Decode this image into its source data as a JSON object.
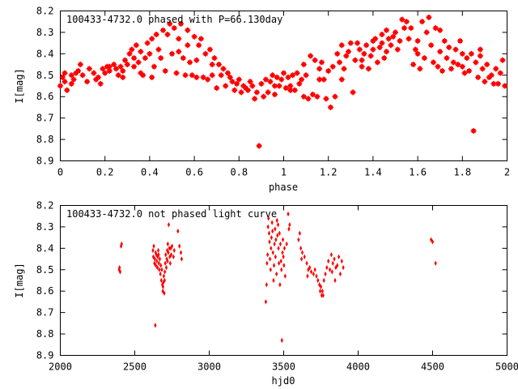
{
  "chart_data": [
    {
      "type": "scatter",
      "title": "100433-4732.0 phased with P=66.130day",
      "xlabel": "phase",
      "ylabel": "I[mag]",
      "xlim": [
        0,
        2
      ],
      "ylim": [
        8.2,
        8.9
      ],
      "y_inverted": true,
      "x_ticks": [
        "0",
        "0.2",
        "0.4",
        "0.6",
        "0.8",
        "1",
        "1.2",
        "1.4",
        "1.6",
        "1.8",
        "2"
      ],
      "y_ticks": [
        "8.2",
        "8.3",
        "8.4",
        "8.5",
        "8.6",
        "8.7",
        "8.8",
        "8.9"
      ],
      "grid": false,
      "legend": "none",
      "marker_color": "#ff0000",
      "points": [
        [
          0.0,
          8.55
        ],
        [
          0.01,
          8.51
        ],
        [
          0.02,
          8.53
        ],
        [
          0.02,
          8.49
        ],
        [
          0.03,
          8.57
        ],
        [
          0.05,
          8.5
        ],
        [
          0.06,
          8.52
        ],
        [
          0.08,
          8.48
        ],
        [
          0.09,
          8.45
        ],
        [
          0.1,
          8.5
        ],
        [
          0.12,
          8.53
        ],
        [
          0.13,
          8.47
        ],
        [
          0.15,
          8.49
        ],
        [
          0.16,
          8.52
        ],
        [
          0.17,
          8.51
        ],
        [
          0.19,
          8.47
        ],
        [
          0.2,
          8.49
        ],
        [
          0.21,
          8.46
        ],
        [
          0.22,
          8.48
        ],
        [
          0.24,
          8.45
        ],
        [
          0.25,
          8.47
        ],
        [
          0.26,
          8.5
        ],
        [
          0.27,
          8.46
        ],
        [
          0.28,
          8.48
        ],
        [
          0.29,
          8.43
        ],
        [
          0.3,
          8.45
        ],
        [
          0.31,
          8.4
        ],
        [
          0.32,
          8.38
        ],
        [
          0.33,
          8.42
        ],
        [
          0.34,
          8.36
        ],
        [
          0.35,
          8.44
        ],
        [
          0.36,
          8.49
        ],
        [
          0.37,
          8.5
        ],
        [
          0.38,
          8.42
        ],
        [
          0.39,
          8.35
        ],
        [
          0.4,
          8.4
        ],
        [
          0.41,
          8.33
        ],
        [
          0.42,
          8.46
        ],
        [
          0.43,
          8.31
        ],
        [
          0.44,
          8.38
        ],
        [
          0.45,
          8.42
        ],
        [
          0.46,
          8.29
        ],
        [
          0.47,
          8.48
        ],
        [
          0.48,
          8.31
        ],
        [
          0.49,
          8.26
        ],
        [
          0.5,
          8.4
        ],
        [
          0.51,
          8.28
        ],
        [
          0.52,
          8.49
        ],
        [
          0.53,
          8.33
        ],
        [
          0.54,
          8.26
        ],
        [
          0.55,
          8.42
        ],
        [
          0.56,
          8.5
        ],
        [
          0.57,
          8.29
        ],
        [
          0.58,
          8.44
        ],
        [
          0.59,
          8.5
        ],
        [
          0.6,
          8.32
        ],
        [
          0.61,
          8.51
        ],
        [
          0.62,
          8.36
        ],
        [
          0.63,
          8.33
        ],
        [
          0.64,
          8.51
        ],
        [
          0.65,
          8.4
        ],
        [
          0.66,
          8.52
        ],
        [
          0.67,
          8.38
        ],
        [
          0.68,
          8.5
        ],
        [
          0.69,
          8.42
        ],
        [
          0.7,
          8.56
        ],
        [
          0.71,
          8.45
        ],
        [
          0.72,
          8.5
        ],
        [
          0.73,
          8.47
        ],
        [
          0.74,
          8.55
        ],
        [
          0.75,
          8.49
        ],
        [
          0.76,
          8.51
        ],
        [
          0.77,
          8.53
        ],
        [
          0.78,
          8.57
        ],
        [
          0.79,
          8.54
        ],
        [
          0.8,
          8.52
        ],
        [
          0.81,
          8.58
        ],
        [
          0.82,
          8.55
        ],
        [
          0.83,
          8.56
        ],
        [
          0.84,
          8.57
        ],
        [
          0.85,
          8.53
        ],
        [
          0.86,
          8.55
        ],
        [
          0.87,
          8.61
        ],
        [
          0.88,
          8.58
        ],
        [
          0.89,
          8.83
        ],
        [
          0.9,
          8.54
        ],
        [
          0.91,
          8.6
        ],
        [
          0.92,
          8.52
        ],
        [
          0.93,
          8.58
        ],
        [
          0.94,
          8.53
        ],
        [
          0.95,
          8.5
        ],
        [
          0.96,
          8.55
        ],
        [
          0.97,
          8.51
        ],
        [
          0.98,
          8.55
        ],
        [
          0.99,
          8.52
        ],
        [
          1.0,
          8.49
        ],
        [
          1.01,
          8.56
        ],
        [
          1.02,
          8.51
        ],
        [
          1.03,
          8.55
        ],
        [
          1.04,
          8.5
        ],
        [
          1.05,
          8.57
        ],
        [
          1.06,
          8.49
        ],
        [
          1.07,
          8.54
        ],
        [
          1.08,
          8.52
        ],
        [
          1.09,
          8.6
        ],
        [
          1.1,
          8.5
        ],
        [
          1.11,
          8.61
        ],
        [
          1.12,
          8.41
        ],
        [
          1.13,
          8.59
        ],
        [
          1.14,
          8.43
        ],
        [
          1.15,
          8.6
        ],
        [
          1.16,
          8.47
        ],
        [
          1.17,
          8.44
        ],
        [
          1.18,
          8.52
        ],
        [
          1.19,
          8.61
        ],
        [
          1.2,
          8.48
        ],
        [
          1.21,
          8.65
        ],
        [
          1.22,
          8.46
        ],
        [
          1.23,
          8.6
        ],
        [
          1.24,
          8.4
        ],
        [
          1.25,
          8.44
        ],
        [
          1.26,
          8.36
        ],
        [
          1.27,
          8.47
        ],
        [
          1.28,
          8.41
        ],
        [
          1.29,
          8.39
        ],
        [
          1.3,
          8.35
        ],
        [
          1.31,
          8.58
        ],
        [
          1.32,
          8.43
        ],
        [
          1.33,
          8.35
        ],
        [
          1.34,
          8.38
        ],
        [
          1.35,
          8.43
        ],
        [
          1.36,
          8.4
        ],
        [
          1.37,
          8.36
        ],
        [
          1.38,
          8.47
        ],
        [
          1.39,
          8.41
        ],
        [
          1.4,
          8.38
        ],
        [
          1.41,
          8.33
        ],
        [
          1.42,
          8.44
        ],
        [
          1.43,
          8.37
        ],
        [
          1.44,
          8.35
        ],
        [
          1.45,
          8.42
        ],
        [
          1.46,
          8.39
        ],
        [
          1.47,
          8.33
        ],
        [
          1.48,
          8.36
        ],
        [
          1.49,
          8.32
        ],
        [
          1.5,
          8.3
        ],
        [
          1.51,
          8.38
        ],
        [
          1.52,
          8.34
        ],
        [
          1.53,
          8.24
        ],
        [
          1.54,
          8.28
        ],
        [
          1.55,
          8.25
        ],
        [
          1.56,
          8.33
        ],
        [
          1.57,
          8.28
        ],
        [
          1.58,
          8.45
        ],
        [
          1.59,
          8.38
        ],
        [
          1.6,
          8.4
        ],
        [
          1.61,
          8.47
        ],
        [
          1.62,
          8.25
        ],
        [
          1.63,
          8.42
        ],
        [
          1.64,
          8.3
        ],
        [
          1.65,
          8.23
        ],
        [
          1.66,
          8.36
        ],
        [
          1.67,
          8.44
        ],
        [
          1.68,
          8.28
        ],
        [
          1.69,
          8.46
        ],
        [
          1.7,
          8.29
        ],
        [
          1.71,
          8.48
        ],
        [
          1.72,
          8.34
        ],
        [
          1.73,
          8.42
        ],
        [
          1.74,
          8.37
        ],
        [
          1.75,
          8.47
        ],
        [
          1.76,
          8.44
        ],
        [
          1.77,
          8.38
        ],
        [
          1.78,
          8.45
        ],
        [
          1.79,
          8.34
        ],
        [
          1.8,
          8.46
        ],
        [
          1.81,
          8.49
        ],
        [
          1.82,
          8.42
        ],
        [
          1.83,
          8.48
        ],
        [
          1.84,
          8.4
        ],
        [
          1.85,
          8.76
        ],
        [
          1.86,
          8.44
        ],
        [
          1.87,
          8.51
        ],
        [
          1.88,
          8.41
        ],
        [
          1.89,
          8.47
        ],
        [
          1.9,
          8.53
        ],
        [
          1.91,
          8.45
        ],
        [
          1.92,
          8.51
        ],
        [
          1.93,
          8.5
        ],
        [
          1.94,
          8.54
        ],
        [
          1.95,
          8.47
        ],
        [
          1.96,
          8.54
        ],
        [
          1.97,
          8.49
        ],
        [
          1.98,
          8.43
        ],
        [
          1.99,
          8.55
        ],
        [
          1.46,
          8.29
        ],
        [
          1.44,
          8.31
        ],
        [
          1.4,
          8.34
        ],
        [
          1.35,
          8.46
        ],
        [
          1.26,
          8.52
        ],
        [
          0.18,
          8.54
        ],
        [
          0.22,
          8.46
        ],
        [
          0.28,
          8.51
        ],
        [
          0.33,
          8.46
        ],
        [
          0.36,
          8.39
        ],
        [
          0.41,
          8.51
        ],
        [
          0.53,
          8.39
        ],
        [
          0.57,
          8.36
        ],
        [
          0.61,
          8.43
        ],
        [
          0.68,
          8.45
        ],
        [
          1.09,
          8.45
        ],
        [
          1.16,
          8.52
        ],
        [
          1.6,
          8.34
        ],
        [
          1.7,
          8.39
        ],
        [
          1.8,
          8.4
        ],
        [
          1.88,
          8.38
        ],
        [
          0.05,
          8.54
        ],
        [
          0.07,
          8.49
        ],
        [
          0.96,
          8.59
        ],
        [
          1.03,
          8.57
        ]
      ]
    },
    {
      "type": "scatter",
      "title": "100433-4732.0 not phased light curve",
      "xlabel": "hjd0",
      "ylabel": "I[mag]",
      "xlim": [
        2000,
        5000
      ],
      "ylim": [
        8.2,
        8.9
      ],
      "y_inverted": true,
      "x_ticks": [
        "2000",
        "2500",
        "3000",
        "3500",
        "4000",
        "4500",
        "5000"
      ],
      "y_ticks": [
        "8.2",
        "8.3",
        "8.4",
        "8.5",
        "8.6",
        "8.7",
        "8.8",
        "8.9"
      ],
      "grid": false,
      "legend": "none",
      "marker_color": "#ff0000",
      "points": [
        [
          2395,
          8.5
        ],
        [
          2398,
          8.49
        ],
        [
          2402,
          8.51
        ],
        [
          2408,
          8.39
        ],
        [
          2412,
          8.38
        ],
        [
          2622,
          8.41
        ],
        [
          2625,
          8.44
        ],
        [
          2628,
          8.39
        ],
        [
          2632,
          8.47
        ],
        [
          2635,
          8.45
        ],
        [
          2638,
          8.76
        ],
        [
          2641,
          8.48
        ],
        [
          2645,
          8.43
        ],
        [
          2648,
          8.46
        ],
        [
          2652,
          8.49
        ],
        [
          2655,
          8.44
        ],
        [
          2658,
          8.41
        ],
        [
          2662,
          8.47
        ],
        [
          2665,
          8.5
        ],
        [
          2668,
          8.45
        ],
        [
          2672,
          8.52
        ],
        [
          2675,
          8.48
        ],
        [
          2678,
          8.55
        ],
        [
          2682,
          8.5
        ],
        [
          2685,
          8.57
        ],
        [
          2688,
          8.6
        ],
        [
          2692,
          8.56
        ],
        [
          2695,
          8.53
        ],
        [
          2698,
          8.61
        ],
        [
          2702,
          8.51
        ],
        [
          2705,
          8.47
        ],
        [
          2708,
          8.43
        ],
        [
          2712,
          8.49
        ],
        [
          2715,
          8.45
        ],
        [
          2718,
          8.41
        ],
        [
          2722,
          8.38
        ],
        [
          2725,
          8.42
        ],
        [
          2728,
          8.29
        ],
        [
          2732,
          8.4
        ],
        [
          2735,
          8.44
        ],
        [
          2738,
          8.47
        ],
        [
          2742,
          8.4
        ],
        [
          2745,
          8.43
        ],
        [
          2750,
          8.39
        ],
        [
          2760,
          8.44
        ],
        [
          2765,
          8.41
        ],
        [
          2790,
          8.32
        ],
        [
          2800,
          8.39
        ],
        [
          2810,
          8.42
        ],
        [
          2815,
          8.45
        ],
        [
          2690,
          8.58
        ],
        [
          2700,
          8.55
        ],
        [
          2660,
          8.43
        ],
        [
          2640,
          8.42
        ],
        [
          2720,
          8.46
        ],
        [
          3380,
          8.65
        ],
        [
          3385,
          8.57
        ],
        [
          3388,
          8.47
        ],
        [
          3392,
          8.43
        ],
        [
          3395,
          8.3
        ],
        [
          3398,
          8.26
        ],
        [
          3402,
          8.33
        ],
        [
          3405,
          8.37
        ],
        [
          3408,
          8.45
        ],
        [
          3412,
          8.5
        ],
        [
          3415,
          8.4
        ],
        [
          3418,
          8.35
        ],
        [
          3422,
          8.28
        ],
        [
          3425,
          8.32
        ],
        [
          3428,
          8.42
        ],
        [
          3432,
          8.55
        ],
        [
          3435,
          8.48
        ],
        [
          3438,
          8.38
        ],
        [
          3442,
          8.31
        ],
        [
          3445,
          8.44
        ],
        [
          3448,
          8.36
        ],
        [
          3452,
          8.52
        ],
        [
          3455,
          8.27
        ],
        [
          3458,
          8.34
        ],
        [
          3462,
          8.29
        ],
        [
          3465,
          8.4
        ],
        [
          3468,
          8.47
        ],
        [
          3472,
          8.33
        ],
        [
          3475,
          8.57
        ],
        [
          3478,
          8.38
        ],
        [
          3482,
          8.46
        ],
        [
          3485,
          8.5
        ],
        [
          3488,
          8.83
        ],
        [
          3492,
          8.42
        ],
        [
          3495,
          8.36
        ],
        [
          3498,
          8.44
        ],
        [
          3502,
          8.48
        ],
        [
          3505,
          8.4
        ],
        [
          3510,
          8.53
        ],
        [
          3520,
          8.38
        ],
        [
          3530,
          8.24
        ],
        [
          3535,
          8.31
        ],
        [
          3540,
          8.29
        ],
        [
          3600,
          8.36
        ],
        [
          3608,
          8.33
        ],
        [
          3615,
          8.4
        ],
        [
          3625,
          8.42
        ],
        [
          3640,
          8.44
        ],
        [
          3655,
          8.47
        ],
        [
          3665,
          8.5
        ],
        [
          3675,
          8.49
        ],
        [
          3685,
          8.51
        ],
        [
          3700,
          8.52
        ],
        [
          3710,
          8.5
        ],
        [
          3720,
          8.53
        ],
        [
          3730,
          8.55
        ],
        [
          3740,
          8.57
        ],
        [
          3750,
          8.58
        ],
        [
          3760,
          8.6
        ],
        [
          3765,
          8.62
        ],
        [
          3770,
          8.55
        ],
        [
          3780,
          8.52
        ],
        [
          3790,
          8.49
        ],
        [
          3800,
          8.46
        ],
        [
          3810,
          8.5
        ],
        [
          3820,
          8.43
        ],
        [
          3830,
          8.47
        ],
        [
          3840,
          8.45
        ],
        [
          3850,
          8.49
        ],
        [
          3860,
          8.48
        ],
        [
          3880,
          8.52
        ],
        [
          3890,
          8.46
        ],
        [
          3900,
          8.49
        ],
        [
          3620,
          8.45
        ],
        [
          3660,
          8.53
        ],
        [
          3745,
          8.6
        ],
        [
          3755,
          8.62
        ],
        [
          3825,
          8.51
        ],
        [
          3845,
          8.55
        ],
        [
          3870,
          8.44
        ],
        [
          4490,
          8.36
        ],
        [
          4500,
          8.37
        ],
        [
          4520,
          8.47
        ]
      ]
    }
  ]
}
